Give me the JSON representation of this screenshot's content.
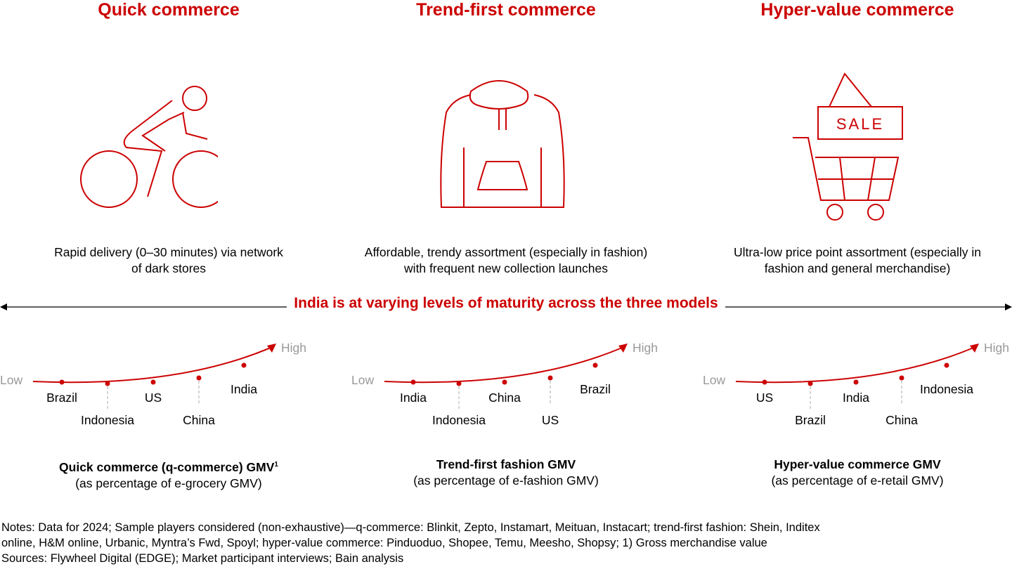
{
  "models": [
    {
      "title": "Quick commerce",
      "icon": "cyclist-icon",
      "description_line1": "Rapid delivery (0–30 minutes) via network",
      "description_line2": "of dark stores",
      "scale": {
        "low": "Low",
        "high": "High",
        "countries": [
          "Brazil",
          "Indonesia",
          "US",
          "China",
          "India"
        ]
      },
      "caption_title": "Quick commerce (q-commerce) GMV",
      "caption_sup": "1",
      "caption_sub": "(as percentage of e-grocery GMV)"
    },
    {
      "title": "Trend-first commerce",
      "icon": "hoodie-icon",
      "description_line1": "Affordable, trendy assortment (especially in fashion)",
      "description_line2": "with frequent new collection launches",
      "scale": {
        "low": "Low",
        "high": "High",
        "countries": [
          "India",
          "Indonesia",
          "China",
          "US",
          "Brazil"
        ]
      },
      "caption_title": "Trend-first fashion GMV",
      "caption_sup": "",
      "caption_sub": "(as percentage of e-fashion GMV)"
    },
    {
      "title": "Hyper-value commerce",
      "icon": "sale-cart-icon",
      "description_line1": "Ultra-low price point assortment (especially in",
      "description_line2": "fashion and general merchandise)",
      "scale": {
        "low": "Low",
        "high": "High",
        "countries": [
          "US",
          "Brazil",
          "India",
          "China",
          "Indonesia"
        ]
      },
      "caption_title": "Hyper-value commerce GMV",
      "caption_sup": "",
      "caption_sub": "(as percentage of e-retail GMV)"
    }
  ],
  "sale_sign": "SALE",
  "banner": "India is at varying levels of maturity across the three models",
  "notes_line1": "Notes: Data for 2024; Sample players considered (non-exhaustive)—q-commerce: Blinkit, Zepto, Instamart, Meituan, Instacart; trend-first fashion: Shein, Inditex",
  "notes_line2": "online, H&M online, Urbanic, Myntra’s Fwd, Spoyl; hyper-value commerce: Pinduoduo, Shopee, Temu, Meesho, Shopsy; 1) Gross merchandise value",
  "sources": "Sources: Flywheel Digital (EDGE); Market participant interviews; Bain analysis",
  "colors": {
    "accent": "#cc0000",
    "muted": "#999999"
  }
}
